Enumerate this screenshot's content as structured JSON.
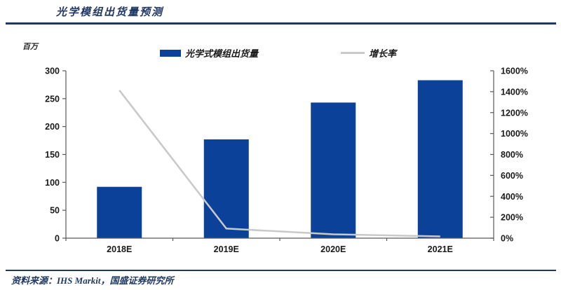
{
  "title": "光学模组出货量预测",
  "source": "资料来源：IHS Markit，国盛证券研究所",
  "colors": {
    "accent_navy": "#1F3864",
    "bar_blue": "#0B4199",
    "line_gray": "#C9C9C9",
    "axis": "#595959",
    "tick_text": "#1a1a1a"
  },
  "chart_data": {
    "type": "bar",
    "title": "光学模组出货量预测",
    "categories": [
      "2018E",
      "2019E",
      "2020E",
      "2021E"
    ],
    "series": [
      {
        "name": "光学式模组出货量",
        "type": "bar",
        "axis": "left",
        "color": "#0B4199",
        "values": [
          92,
          177,
          243,
          283
        ]
      },
      {
        "name": "增长率",
        "type": "line",
        "axis": "right",
        "color": "#C9C9C9",
        "values": [
          1413,
          92,
          37,
          17
        ],
        "suffix": "%"
      }
    ],
    "left_axis": {
      "label": "百万",
      "min": 0,
      "max": 300,
      "step": 50
    },
    "right_axis": {
      "min": 0,
      "max": 1600,
      "step": 200,
      "suffix": "%"
    },
    "legend_position": "top",
    "grid": false
  }
}
